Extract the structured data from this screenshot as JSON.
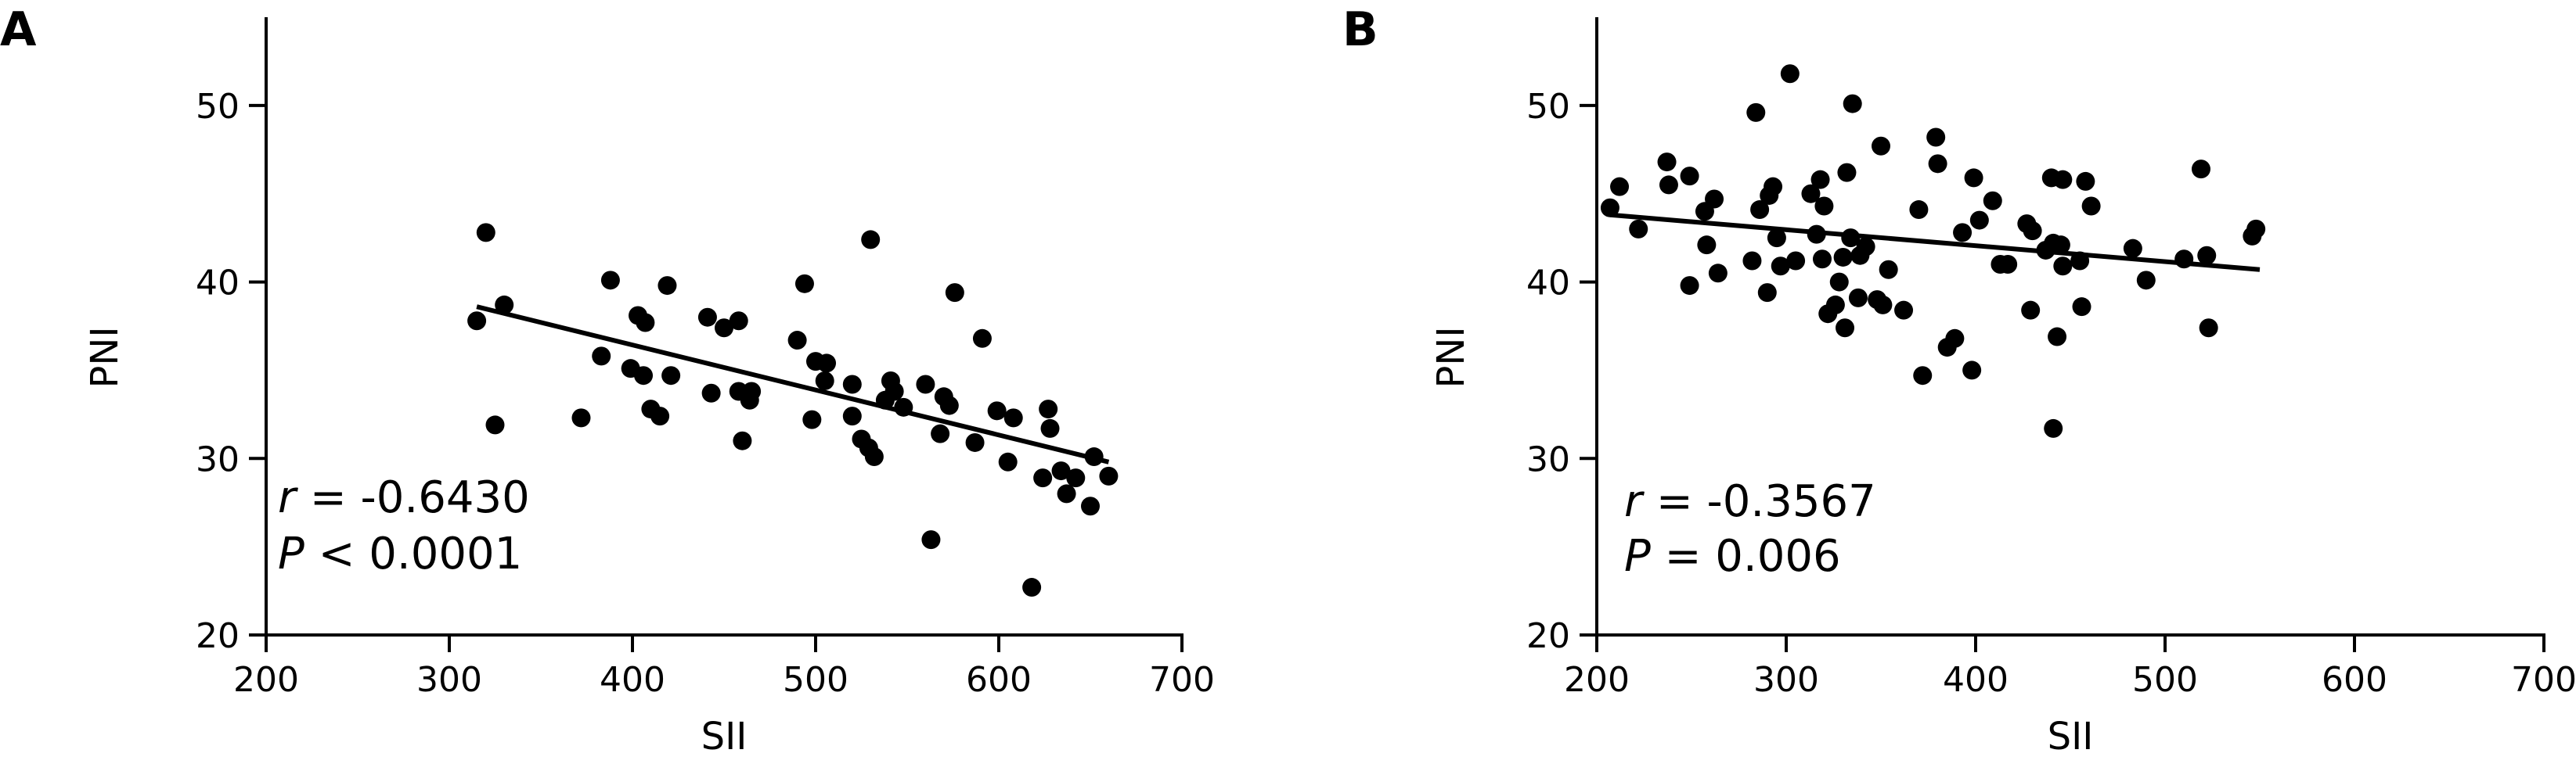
{
  "colors": {
    "ink": "#000000",
    "background": "#ffffff"
  },
  "panels": [
    {
      "letter": "A",
      "r_symbol": "r",
      "r_text": " = -0.6430",
      "p_symbol": "P",
      "p_text": " < 0.0001"
    },
    {
      "letter": "B",
      "r_symbol": "r",
      "r_text": " = -0.3567",
      "p_symbol": "P",
      "p_text": " = 0.006"
    }
  ],
  "chart_data": [
    {
      "type": "scatter",
      "title": "",
      "xlabel": "SII",
      "ylabel": "PNI",
      "xlim": [
        200,
        700
      ],
      "ylim": [
        20,
        55
      ],
      "xticks": [
        200,
        300,
        400,
        500,
        600,
        700
      ],
      "yticks": [
        20,
        30,
        40,
        50
      ],
      "grid": false,
      "trendline": {
        "x": [
          315,
          660
        ],
        "y": [
          38.6,
          29.8
        ]
      },
      "points": [
        [
          315,
          37.8
        ],
        [
          320,
          42.8
        ],
        [
          325,
          31.9
        ],
        [
          330,
          38.7
        ],
        [
          372,
          32.3
        ],
        [
          383,
          35.8
        ],
        [
          388,
          40.1
        ],
        [
          399,
          35.1
        ],
        [
          403,
          38.1
        ],
        [
          406,
          34.7
        ],
        [
          407,
          37.7
        ],
        [
          410,
          32.8
        ],
        [
          415,
          32.4
        ],
        [
          419,
          39.8
        ],
        [
          421,
          34.7
        ],
        [
          441,
          38.0
        ],
        [
          443,
          33.7
        ],
        [
          450,
          37.4
        ],
        [
          458,
          33.8
        ],
        [
          458,
          37.8
        ],
        [
          460,
          31.0
        ],
        [
          464,
          33.3
        ],
        [
          465,
          33.8
        ],
        [
          490,
          36.7
        ],
        [
          494,
          39.9
        ],
        [
          498,
          32.2
        ],
        [
          500,
          35.5
        ],
        [
          505,
          34.4
        ],
        [
          506,
          35.4
        ],
        [
          520,
          34.2
        ],
        [
          520,
          32.4
        ],
        [
          525,
          31.1
        ],
        [
          529,
          30.6
        ],
        [
          530,
          42.4
        ],
        [
          532,
          30.1
        ],
        [
          538,
          33.3
        ],
        [
          541,
          34.4
        ],
        [
          543,
          33.8
        ],
        [
          548,
          32.9
        ],
        [
          560,
          34.2
        ],
        [
          563,
          25.4
        ],
        [
          568,
          31.4
        ],
        [
          570,
          33.5
        ],
        [
          573,
          33.0
        ],
        [
          576,
          39.4
        ],
        [
          587,
          30.9
        ],
        [
          591,
          36.8
        ],
        [
          599,
          32.7
        ],
        [
          605,
          29.8
        ],
        [
          608,
          32.3
        ],
        [
          618,
          22.7
        ],
        [
          624,
          28.9
        ],
        [
          627,
          32.8
        ],
        [
          628,
          31.7
        ],
        [
          634,
          29.3
        ],
        [
          637,
          28.0
        ],
        [
          642,
          28.9
        ],
        [
          650,
          27.3
        ],
        [
          652,
          30.1
        ],
        [
          660,
          29.0
        ]
      ]
    },
    {
      "type": "scatter",
      "title": "",
      "xlabel": "SII",
      "ylabel": "PNI",
      "xlim": [
        200,
        700
      ],
      "ylim": [
        20,
        55
      ],
      "xticks": [
        200,
        300,
        400,
        500,
        600,
        700
      ],
      "yticks": [
        20,
        30,
        40,
        50
      ],
      "grid": false,
      "trendline": {
        "x": [
          207,
          550
        ],
        "y": [
          43.8,
          40.7
        ]
      },
      "points": [
        [
          207,
          44.2
        ],
        [
          212,
          45.4
        ],
        [
          222,
          43.0
        ],
        [
          237,
          46.8
        ],
        [
          238,
          45.5
        ],
        [
          249,
          39.8
        ],
        [
          249,
          46.0
        ],
        [
          257,
          44.0
        ],
        [
          258,
          42.1
        ],
        [
          262,
          44.7
        ],
        [
          264,
          40.5
        ],
        [
          282,
          41.2
        ],
        [
          284,
          49.6
        ],
        [
          286,
          44.1
        ],
        [
          290,
          39.4
        ],
        [
          291,
          44.9
        ],
        [
          293,
          45.4
        ],
        [
          295,
          42.5
        ],
        [
          297,
          40.9
        ],
        [
          302,
          51.8
        ],
        [
          305,
          41.2
        ],
        [
          313,
          45.0
        ],
        [
          316,
          42.7
        ],
        [
          318,
          45.8
        ],
        [
          319,
          41.3
        ],
        [
          320,
          44.3
        ],
        [
          322,
          38.2
        ],
        [
          326,
          38.7
        ],
        [
          328,
          40.0
        ],
        [
          330,
          41.4
        ],
        [
          331,
          37.4
        ],
        [
          332,
          46.2
        ],
        [
          334,
          42.5
        ],
        [
          335,
          50.1
        ],
        [
          338,
          39.1
        ],
        [
          339,
          41.5
        ],
        [
          342,
          42.0
        ],
        [
          348,
          39.0
        ],
        [
          350,
          47.7
        ],
        [
          351,
          38.7
        ],
        [
          354,
          40.7
        ],
        [
          362,
          38.4
        ],
        [
          370,
          44.1
        ],
        [
          372,
          34.7
        ],
        [
          379,
          48.2
        ],
        [
          380,
          46.7
        ],
        [
          385,
          36.3
        ],
        [
          389,
          36.8
        ],
        [
          393,
          42.8
        ],
        [
          398,
          35.0
        ],
        [
          399,
          45.9
        ],
        [
          402,
          43.5
        ],
        [
          409,
          44.6
        ],
        [
          413,
          41.0
        ],
        [
          417,
          41.0
        ],
        [
          427,
          43.3
        ],
        [
          429,
          38.4
        ],
        [
          430,
          42.9
        ],
        [
          437,
          41.8
        ],
        [
          440,
          45.9
        ],
        [
          441,
          42.2
        ],
        [
          441,
          31.7
        ],
        [
          443,
          36.9
        ],
        [
          445,
          42.1
        ],
        [
          446,
          45.8
        ],
        [
          446,
          40.9
        ],
        [
          455,
          41.2
        ],
        [
          456,
          38.6
        ],
        [
          458,
          45.7
        ],
        [
          461,
          44.3
        ],
        [
          483,
          41.9
        ],
        [
          490,
          40.1
        ],
        [
          510,
          41.3
        ],
        [
          519,
          46.4
        ],
        [
          522,
          41.5
        ],
        [
          523,
          37.4
        ],
        [
          546,
          42.6
        ],
        [
          548,
          43.0
        ]
      ]
    }
  ]
}
